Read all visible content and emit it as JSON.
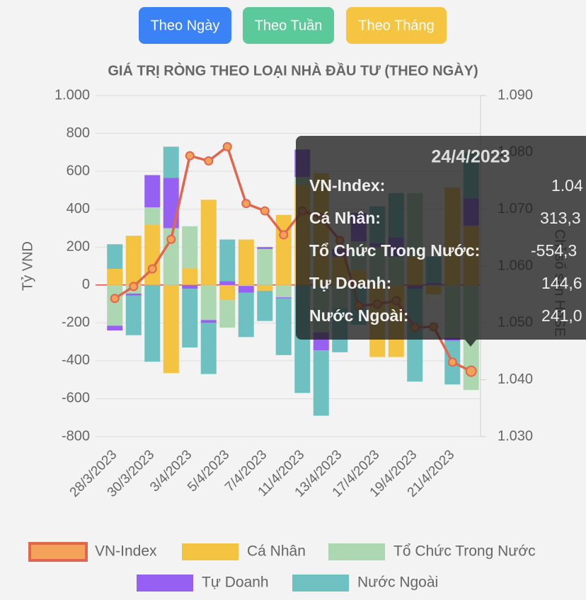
{
  "buttons": [
    "Theo Ngày",
    "Theo Tuần",
    "Theo Tháng"
  ],
  "chart_data": {
    "type": "bar",
    "stacked": true,
    "title": "GIÁ TRỊ RÒNG THEO LOẠI NHÀ ĐẦU TƯ (THEO NGÀY)",
    "y_label": "Tỷ VND",
    "y2_label": "Chỉ số sàn HoSE",
    "categories": [
      "28/3/2023",
      null,
      "30/3/2023",
      null,
      "3/4/2023",
      null,
      "5/4/2023",
      null,
      "7/4/2023",
      null,
      "11/4/2023",
      null,
      "13/4/2023",
      null,
      "17/4/2023",
      null,
      "19/4/2023",
      null,
      "21/4/2023",
      null
    ],
    "series": [
      {
        "name": "VN-Index",
        "type": "line",
        "axis": "y2",
        "color": "#e0674e",
        "fill_color": "#f4a259",
        "values": [
          1054.3,
          1056.4,
          1059.5,
          1064.7,
          1079.4,
          1078.5,
          1081.0,
          1071.0,
          1069.7,
          1065.5,
          1069.7,
          1068.5,
          1064.5,
          1053.0,
          1053.3,
          1053.9,
          1049.2,
          1049.3,
          1043.1,
          1041.5
        ]
      },
      {
        "name": "Cá Nhân",
        "color": "#f5c342",
        "values": [
          85,
          260,
          320,
          -465,
          90,
          450,
          -80,
          240,
          -30,
          370,
          530,
          590,
          150,
          80,
          -380,
          -380,
          150,
          -50,
          515,
          313.3
        ]
      },
      {
        "name": "Tổ Chức Trong Nước",
        "color": "#acd7b1",
        "values": [
          -215,
          -45,
          90,
          300,
          220,
          -185,
          -145,
          -5,
          190,
          -65,
          40,
          -250,
          -120,
          150,
          200,
          150,
          335,
          0,
          -280,
          -554.3
        ]
      },
      {
        "name": "Tự Doanh",
        "color": "#9660f2",
        "values": [
          -25,
          -10,
          170,
          265,
          -20,
          -15,
          20,
          -35,
          10,
          -5,
          145,
          -95,
          40,
          150,
          20,
          100,
          -20,
          10,
          -15,
          144.6
        ]
      },
      {
        "name": "Nước Ngoài",
        "color": "#6ec1c0",
        "values": [
          130,
          -210,
          -405,
          165,
          -310,
          -270,
          220,
          -235,
          -160,
          -300,
          -570,
          -345,
          -235,
          -210,
          195,
          235,
          -490,
          140,
          -230,
          241.0
        ]
      }
    ],
    "ylim": [
      -800,
      1000
    ],
    "yticks": [
      {
        "value": 1000,
        "label": "1.000"
      },
      800,
      600,
      400,
      200,
      0,
      -200,
      -400,
      -600,
      -800
    ],
    "y2lim": [
      1030,
      1090
    ],
    "y2ticks": [
      {
        "value": 1090,
        "label": "1.090"
      },
      {
        "value": 1080,
        "label": "1.080"
      },
      {
        "value": 1070,
        "label": "1.070"
      },
      {
        "value": 1060,
        "label": "1.060"
      },
      {
        "value": 1050,
        "label": "1.050"
      },
      {
        "value": 1040,
        "label": "1.040"
      },
      {
        "value": 1030,
        "label": "1.030"
      }
    ],
    "grid": true,
    "zero_line_color": "#d9534f"
  },
  "tooltip": {
    "title": "24/4/2023",
    "rows": [
      {
        "label": "VN-Index:",
        "value": "1.04"
      },
      {
        "label": "Cá Nhân:",
        "value": "313,3"
      },
      {
        "label": "Tổ Chức Trong Nước:",
        "value": "-554,3"
      },
      {
        "label": "Tự Doanh:",
        "value": "144,6"
      },
      {
        "label": "Nước Ngoài:",
        "value": "241,0"
      }
    ]
  }
}
